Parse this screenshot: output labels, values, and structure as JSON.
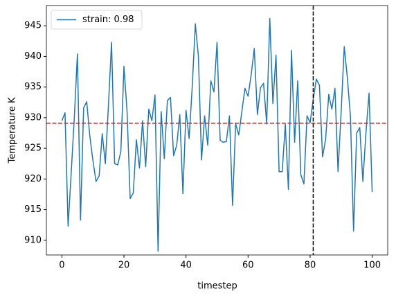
{
  "chart_data": {
    "type": "line",
    "xlabel": "timestep",
    "ylabel": "Temperature K",
    "x": [
      0,
      1,
      2,
      3,
      4,
      5,
      6,
      7,
      8,
      9,
      10,
      11,
      12,
      13,
      14,
      15,
      16,
      17,
      18,
      19,
      20,
      21,
      22,
      23,
      24,
      25,
      26,
      27,
      28,
      29,
      30,
      31,
      32,
      33,
      34,
      35,
      36,
      37,
      38,
      39,
      40,
      41,
      42,
      43,
      44,
      45,
      46,
      47,
      48,
      49,
      50,
      51,
      52,
      53,
      54,
      55,
      56,
      57,
      58,
      59,
      60,
      61,
      62,
      63,
      64,
      65,
      66,
      67,
      68,
      69,
      70,
      71,
      72,
      73,
      74,
      75,
      76,
      77,
      78,
      79,
      80,
      81,
      82,
      83,
      84,
      85,
      86,
      87,
      88,
      89,
      90,
      91,
      92,
      93,
      94,
      95,
      96,
      97,
      98,
      99,
      100
    ],
    "series": [
      {
        "name": "strain: 0.98",
        "color": "#1f77b4",
        "values": [
          929.5,
          930.8,
          912.3,
          921,
          930,
          940.4,
          913.3,
          931.6,
          932.6,
          927,
          923,
          919.6,
          920.5,
          927.4,
          922.5,
          932,
          942.3,
          922.5,
          922.3,
          924.5,
          938.4,
          931,
          916.8,
          917.7,
          926.4,
          921.8,
          929.5,
          922,
          931.4,
          929.5,
          933.7,
          908.2,
          931,
          923.3,
          932.8,
          933.3,
          923.8,
          925.5,
          930.5,
          917.6,
          931.2,
          926.6,
          935,
          945.3,
          940,
          923.1,
          930.3,
          925.5,
          936,
          934.2,
          942.3,
          926.3,
          926,
          926.1,
          930.3,
          915.7,
          929,
          927.2,
          931,
          934.8,
          933.5,
          937,
          941.3,
          930.5,
          934.9,
          935.6,
          929,
          946.2,
          932.3,
          940.2,
          921.2,
          921.2,
          928.9,
          918.3,
          941,
          926,
          936,
          920.7,
          919.2,
          930.3,
          929.2,
          933,
          936.3,
          935.3,
          923.6,
          926.5,
          933.8,
          931.4,
          934.8,
          921.2,
          931,
          941.6,
          936.5,
          930.2,
          911.5,
          927.5,
          928.4,
          919.6,
          927.6,
          934,
          917.9
        ]
      }
    ],
    "hline": {
      "value": 929.1,
      "color": "#d62728"
    },
    "vline": {
      "value": 81,
      "color": "#000000"
    },
    "xlim": [
      -5,
      105
    ],
    "xticks": [
      0,
      20,
      40,
      60,
      80,
      100
    ],
    "ylim": [
      907.6,
      948.3
    ],
    "yticks": [
      910,
      915,
      920,
      925,
      930,
      935,
      940,
      945
    ],
    "legend": "upper left"
  }
}
